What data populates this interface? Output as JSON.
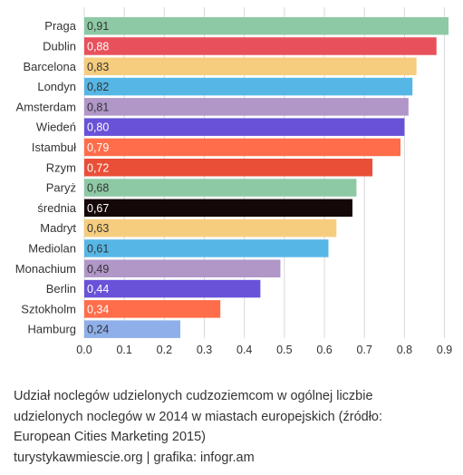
{
  "chart_data": {
    "type": "bar",
    "orientation": "horizontal",
    "categories": [
      "Praga",
      "Dublin",
      "Barcelona",
      "Londyn",
      "Amsterdam",
      "Wiedeń",
      "Istambuł",
      "Rzym",
      "Paryż",
      "średnia",
      "Madryt",
      "Mediolan",
      "Monachium",
      "Berlin",
      "Sztokholm",
      "Hamburg"
    ],
    "values": [
      0.91,
      0.88,
      0.83,
      0.82,
      0.81,
      0.8,
      0.79,
      0.72,
      0.68,
      0.67,
      0.63,
      0.61,
      0.49,
      0.44,
      0.34,
      0.24
    ],
    "value_labels": [
      "0,91",
      "0,88",
      "0,83",
      "0,82",
      "0,81",
      "0,80",
      "0,79",
      "0,72",
      "0,68",
      "0,67",
      "0,63",
      "0,61",
      "0,49",
      "0,44",
      "0,34",
      "0,24"
    ],
    "colors": [
      "#8DC9A5",
      "#E8505B",
      "#F6CD7E",
      "#56B7E6",
      "#B196C8",
      "#6952D8",
      "#FF6D4A",
      "#E94F37",
      "#8DC9A5",
      "#150808",
      "#F6CD7E",
      "#56B7E6",
      "#B196C8",
      "#6952D8",
      "#FF6D4A",
      "#8FAFEA"
    ],
    "x_ticks": [
      "0.0",
      "0.1",
      "0.2",
      "0.3",
      "0.4",
      "0.5",
      "0.6",
      "0.7",
      "0.8",
      "0.9"
    ],
    "xlim": [
      0,
      0.91
    ],
    "grid": true,
    "title": "",
    "xlabel": "",
    "ylabel": ""
  },
  "caption": {
    "text": "Udział noclegów udzielonych cudzoziemcom w ogólnej liczbie udzielonych noclegów w 2014 w miastach europejskich (źródło: European Cities Marketing 2015)",
    "source": "turystykawmiescie.org  | grafika: infogr.am"
  },
  "colors": {
    "grid": "#D8D8D8",
    "text": "#333333",
    "label_light": "#ffffff",
    "label_dark": "#333333"
  }
}
